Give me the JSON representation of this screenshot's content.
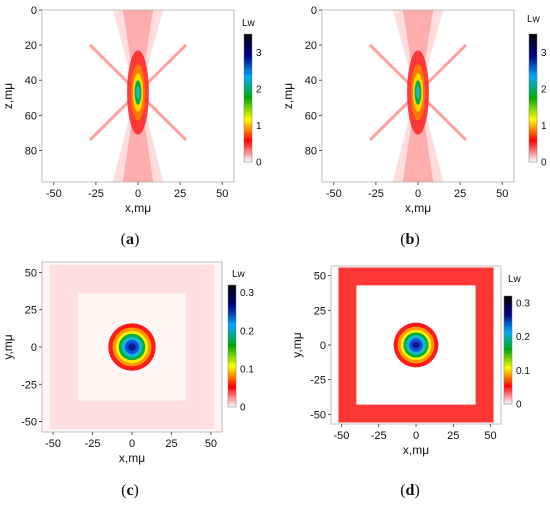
{
  "chart_data": [
    {
      "type": "heatmap",
      "panel_label": "(a)",
      "letter": "a",
      "xlabel": "x,mμ",
      "ylabel": "z,mμ",
      "x_ticks": [
        "-50",
        "-25",
        "0",
        "25",
        "50"
      ],
      "y_ticks": [
        "0",
        "20",
        "40",
        "60",
        "80"
      ],
      "xlim": [
        -57,
        57
      ],
      "ylim": [
        0,
        98
      ],
      "y_inverted": true,
      "colorbar": {
        "label": "Lw",
        "ticks": [
          "0",
          "1",
          "2",
          "3"
        ],
        "range": [
          0,
          3.5
        ]
      },
      "pattern": "longitudinal-focus",
      "focus": [
        0,
        47
      ],
      "peak": 3.1,
      "colormap": [
        "#ffffff",
        "#ff0000",
        "#ffff00",
        "#00aa00",
        "#00aaff",
        "#000080",
        "#000000"
      ]
    },
    {
      "type": "heatmap",
      "panel_label": "(b)",
      "letter": "b",
      "xlabel": "x,mμ",
      "ylabel": "z,mμ",
      "x_ticks": [
        "-50",
        "-25",
        "0",
        "25",
        "50"
      ],
      "y_ticks": [
        "0",
        "20",
        "40",
        "60",
        "80"
      ],
      "xlim": [
        -57,
        57
      ],
      "ylim": [
        0,
        98
      ],
      "y_inverted": true,
      "colorbar": {
        "label": "Lw",
        "ticks": [
          "0",
          "1",
          "2",
          "3"
        ],
        "range": [
          0,
          3.5
        ]
      },
      "pattern": "longitudinal-focus",
      "focus": [
        0,
        47
      ],
      "peak": 3.3,
      "colormap": [
        "#ffffff",
        "#ff0000",
        "#ffff00",
        "#00aa00",
        "#00aaff",
        "#000080",
        "#000000"
      ]
    },
    {
      "type": "heatmap",
      "panel_label": "(c)",
      "letter": "c",
      "xlabel": "x,mμ",
      "ylabel": "y,mμ",
      "x_ticks": [
        "-50",
        "-25",
        "0",
        "25",
        "50"
      ],
      "y_ticks": [
        "50",
        "25",
        "0",
        "-25",
        "-50"
      ],
      "xlim": [
        -57,
        57
      ],
      "ylim": [
        -57,
        57
      ],
      "y_inverted": false,
      "colorbar": {
        "label": "Lw",
        "ticks": [
          "0",
          "0.1",
          "0.2",
          "0.3"
        ],
        "range": [
          0,
          0.32
        ]
      },
      "pattern": "transverse-spot",
      "spot_radius": 15,
      "peak": 0.31,
      "frame_level": 0.015,
      "colormap": [
        "#ffffff",
        "#ff0000",
        "#ffff00",
        "#00aa00",
        "#00aaff",
        "#000080",
        "#000000"
      ]
    },
    {
      "type": "heatmap",
      "panel_label": "(d)",
      "letter": "d",
      "xlabel": "x,mμ",
      "ylabel": "y,mμ",
      "x_ticks": [
        "-50",
        "-25",
        "0",
        "25",
        "50"
      ],
      "y_ticks": [
        "50",
        "25",
        "0",
        "-25",
        "-50"
      ],
      "xlim": [
        -57,
        57
      ],
      "ylim": [
        -57,
        57
      ],
      "y_inverted": false,
      "colorbar": {
        "label": "Lw",
        "ticks": [
          "0",
          "0.1",
          "0.2",
          "0.3"
        ],
        "range": [
          0,
          0.32
        ]
      },
      "pattern": "transverse-spot",
      "spot_radius": 15,
      "peak": 0.31,
      "frame_level": 0.07,
      "colormap": [
        "#ffffff",
        "#ff0000",
        "#ffff00",
        "#00aa00",
        "#00aaff",
        "#000080",
        "#000000"
      ]
    }
  ]
}
